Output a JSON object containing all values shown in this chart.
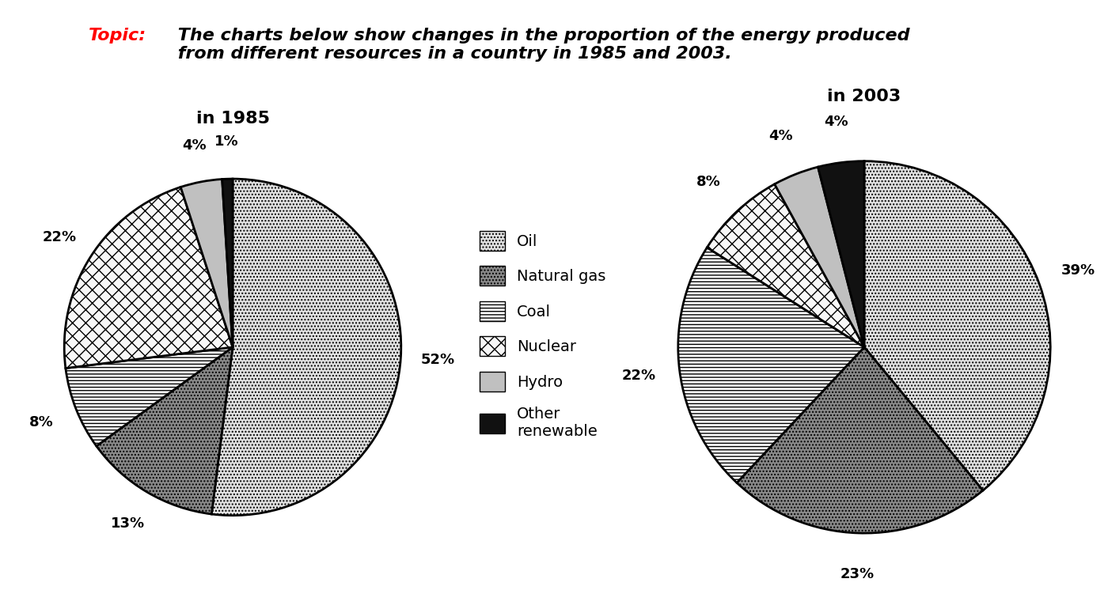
{
  "title_topic": "Topic:",
  "title_rest": " The charts below show changes in the proportion of the energy produced\n from different resources in a country in 1985 and 2003.",
  "chart1_title": "in 1985",
  "chart2_title": "in 2003",
  "labels": [
    "Oil",
    "Natural gas",
    "Coal",
    "Nuclear",
    "Hydro",
    "Other\nrenewable"
  ],
  "values_1985": [
    52,
    13,
    8,
    22,
    4,
    1
  ],
  "values_2003": [
    39,
    23,
    22,
    8,
    4,
    4
  ],
  "background_color": "#ffffff",
  "title_fontsize": 16,
  "pct_fontsize": 13,
  "legend_fontsize": 14,
  "chart_title_fontsize": 16
}
